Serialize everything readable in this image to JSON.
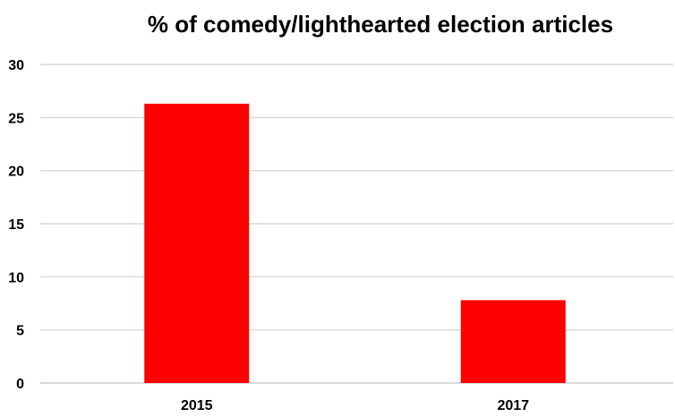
{
  "chart_data": {
    "type": "bar",
    "title": "% of comedy/lighthearted election articles",
    "categories": [
      "2015",
      "2017"
    ],
    "values": [
      26.3,
      7.8
    ],
    "xlabel": "",
    "ylabel": "",
    "ylim": [
      0,
      30
    ],
    "yticks": [
      0,
      5,
      10,
      15,
      20,
      25,
      30
    ],
    "grid": true,
    "legend": "none",
    "bar_color": "#ff0000"
  }
}
